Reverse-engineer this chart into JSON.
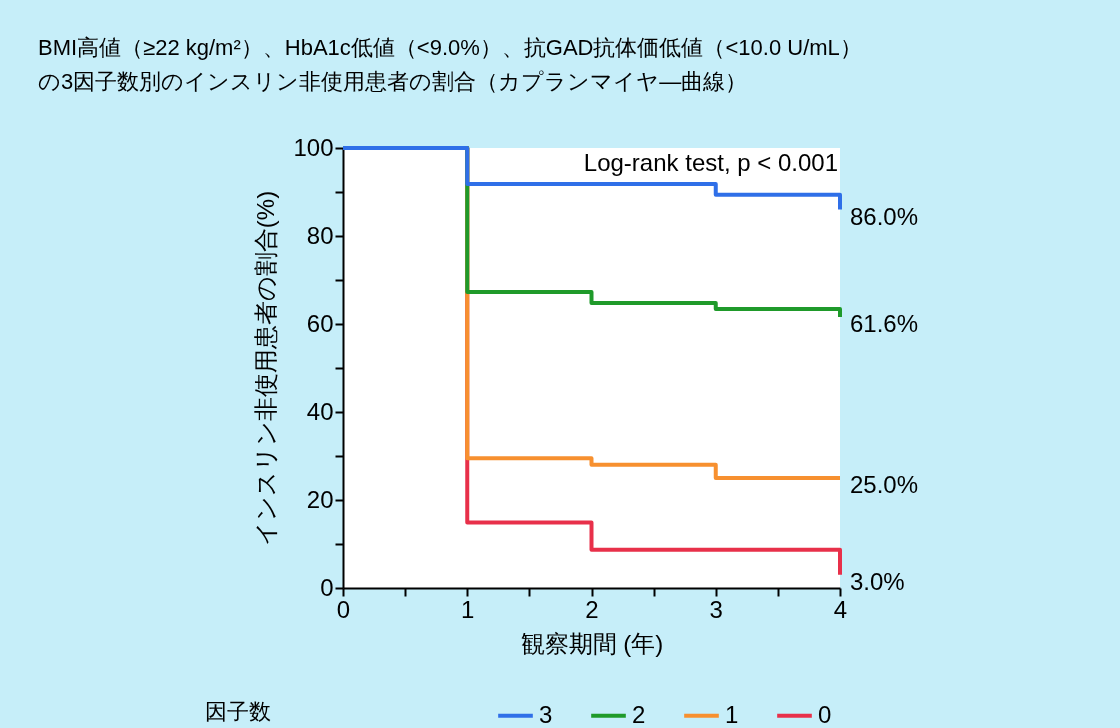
{
  "chart_data": {
    "type": "step",
    "title": [
      "BMI高値（≥22 kg/m²）、HbA1c低値（<9.0%）、抗GAD抗体価低値（<10.0 U/mL）",
      "の3因子数別のインスリン非使用患者の割合（カプランマイヤ―曲線）"
    ],
    "xlabel": "観察期間 (年)",
    "ylabel": "インスリン非使用患者の割合(%)",
    "legend_title": "因子数",
    "x": [
      0,
      1,
      2,
      3,
      4
    ],
    "series": [
      {
        "name": "3",
        "color": "#2f6fe8",
        "values": [
          100,
          91.8,
          91.8,
          89.4,
          86.0
        ],
        "value_labels": [
          null,
          null,
          null,
          null,
          "86.0%"
        ]
      },
      {
        "name": "2",
        "color": "#1f9a2a",
        "values": [
          100,
          67.3,
          64.8,
          63.4,
          61.6
        ],
        "value_labels": [
          null,
          null,
          null,
          null,
          "61.6%"
        ]
      },
      {
        "name": "1",
        "color": "#f7902f",
        "values": [
          100,
          29.5,
          28.0,
          25.0,
          25.0
        ],
        "value_labels": [
          null,
          null,
          null,
          null,
          "25.0%"
        ]
      },
      {
        "name": "0",
        "color": "#e8304a",
        "values": [
          100,
          14.9,
          8.7,
          8.7,
          3.0
        ],
        "value_labels": [
          null,
          null,
          null,
          null,
          "3.0%"
        ]
      }
    ],
    "xlim": [
      0,
      4
    ],
    "ylim": [
      0,
      100
    ],
    "xticks": [
      0,
      {
        "value": 0.5,
        "label": null
      },
      1,
      {
        "value": 1.5,
        "label": null
      },
      2,
      {
        "value": 2.5,
        "label": null
      },
      3,
      {
        "value": 3.5,
        "label": null
      },
      4
    ],
    "yticks": [
      0,
      {
        "value": 10,
        "label": null
      },
      20,
      {
        "value": 30,
        "label": null
      },
      40,
      {
        "value": 50,
        "label": null
      },
      60,
      {
        "value": 70,
        "label": null
      },
      80,
      {
        "value": 90,
        "label": null
      },
      100
    ],
    "annotations": [
      "Log-rank test, p < 0.001"
    ],
    "grid": false,
    "legend": "bottom",
    "line_style": "solid",
    "marker": "none"
  }
}
